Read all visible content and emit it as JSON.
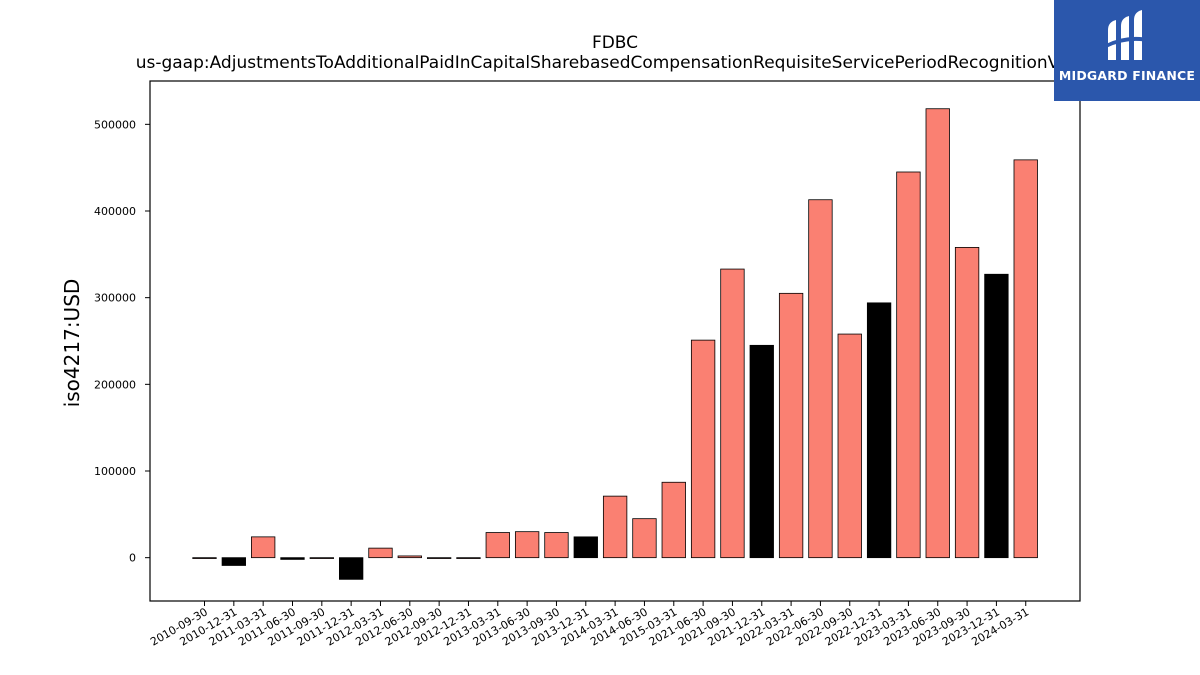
{
  "chart_data": {
    "type": "bar",
    "title": "FDBC",
    "subtitle": "us-gaap:AdjustmentsToAdditionalPaidInCapitalSharebasedCompensationRequisiteServicePeriodRecognitionValue",
    "xlabel": "",
    "ylabel": "iso4217:USD",
    "ylim": [
      -50000,
      550000
    ],
    "yticks": [
      0,
      100000,
      200000,
      300000,
      400000,
      500000
    ],
    "grid": false,
    "categories": [
      "2010-09-30",
      "2010-12-31",
      "2011-03-31",
      "2011-06-30",
      "2011-09-30",
      "2011-12-31",
      "2012-03-31",
      "2012-06-30",
      "2012-09-30",
      "2012-12-31",
      "2013-03-31",
      "2013-06-30",
      "2013-09-30",
      "2013-12-31",
      "2014-03-31",
      "2014-06-30",
      "2015-03-31",
      "2021-06-30",
      "2021-09-30",
      "2021-12-31",
      "2022-03-31",
      "2022-06-30",
      "2022-09-30",
      "2022-12-31",
      "2023-03-31",
      "2023-06-30",
      "2023-09-30",
      "2023-12-31",
      "2024-03-31"
    ],
    "values": [
      -1000,
      -9000,
      24000,
      -2000,
      -1000,
      -25000,
      11000,
      2000,
      -1000,
      -1000,
      29000,
      30000,
      29000,
      24000,
      71000,
      45000,
      87000,
      251000,
      333000,
      245000,
      305000,
      413000,
      258000,
      294000,
      445000,
      518000,
      358000,
      327000,
      459000
    ],
    "highlight": [
      false,
      true,
      false,
      true,
      false,
      true,
      false,
      false,
      false,
      false,
      false,
      false,
      false,
      true,
      false,
      false,
      false,
      false,
      false,
      true,
      false,
      false,
      false,
      true,
      false,
      false,
      false,
      true,
      false
    ],
    "colors": {
      "default": "#fa8072",
      "highlight": "#000000",
      "edge": "#000000"
    }
  },
  "logo": {
    "text": "MIDGARD FINANCE",
    "background": "#2b57ac"
  }
}
